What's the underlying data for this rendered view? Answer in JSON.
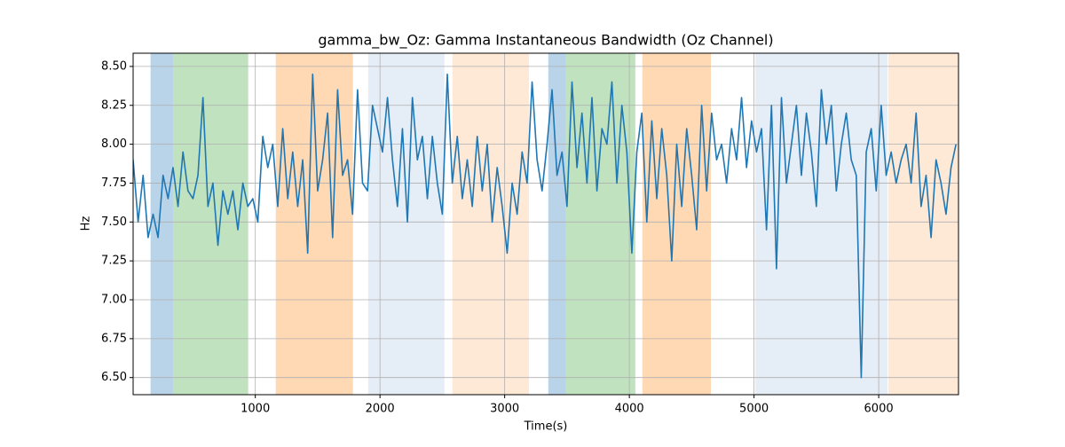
{
  "chart_data": {
    "type": "line",
    "title": "gamma_bw_Oz: Gamma Instantaneous Bandwidth (Oz Channel)",
    "xlabel": "Time(s)",
    "ylabel": "Hz",
    "xlim": [
      20,
      6640
    ],
    "ylim": [
      6.39,
      8.585
    ],
    "xticks": [
      1000,
      2000,
      3000,
      4000,
      5000,
      6000
    ],
    "yticks": [
      {
        "value": 6.5,
        "label": "6.50"
      },
      6.75,
      {
        "value": 7.0,
        "label": "7.00"
      },
      7.25,
      {
        "value": 7.5,
        "label": "7.50"
      },
      7.75,
      {
        "value": 8.0,
        "label": "8.00"
      },
      8.25,
      {
        "value": 8.5,
        "label": "8.50"
      }
    ],
    "grid": true,
    "spans": [
      {
        "start": 160,
        "end": 345,
        "color": "#b9d3e8"
      },
      {
        "start": 345,
        "end": 943,
        "color": "#c0e2bf"
      },
      {
        "start": 1164,
        "end": 1783,
        "color": "#ffd8b4"
      },
      {
        "start": 1905,
        "end": 2517,
        "color": "#e5edf6"
      },
      {
        "start": 2581,
        "end": 3194,
        "color": "#fee8d6"
      },
      {
        "start": 3350,
        "end": 3493,
        "color": "#b9d3e8"
      },
      {
        "start": 3493,
        "end": 4048,
        "color": "#c0e2bf"
      },
      {
        "start": 4105,
        "end": 4654,
        "color": "#ffd8b4"
      },
      {
        "start": 5010,
        "end": 6071,
        "color": "#e5edf6"
      },
      {
        "start": 6078,
        "end": 6640,
        "color": "#fee8d6"
      }
    ],
    "x": [
      20,
      60,
      100,
      140,
      180,
      220,
      260,
      300,
      340,
      380,
      420,
      460,
      500,
      540,
      580,
      620,
      660,
      700,
      740,
      780,
      820,
      860,
      900,
      940,
      980,
      1020,
      1060,
      1100,
      1140,
      1180,
      1220,
      1260,
      1300,
      1340,
      1380,
      1420,
      1460,
      1500,
      1540,
      1580,
      1620,
      1660,
      1700,
      1740,
      1780,
      1820,
      1860,
      1900,
      1940,
      1980,
      2020,
      2060,
      2100,
      2140,
      2180,
      2220,
      2260,
      2300,
      2340,
      2380,
      2420,
      2460,
      2500,
      2540,
      2580,
      2620,
      2660,
      2700,
      2740,
      2780,
      2820,
      2860,
      2900,
      2940,
      2980,
      3020,
      3060,
      3100,
      3140,
      3180,
      3220,
      3260,
      3300,
      3340,
      3380,
      3420,
      3460,
      3500,
      3540,
      3580,
      3620,
      3660,
      3700,
      3740,
      3780,
      3820,
      3860,
      3900,
      3940,
      3980,
      4020,
      4060,
      4100,
      4140,
      4180,
      4220,
      4260,
      4300,
      4340,
      4380,
      4420,
      4460,
      4500,
      4540,
      4580,
      4620,
      4660,
      4700,
      4740,
      4780,
      4820,
      4860,
      4900,
      4940,
      4980,
      5020,
      5060,
      5100,
      5140,
      5180,
      5220,
      5260,
      5300,
      5340,
      5380,
      5420,
      5460,
      5500,
      5540,
      5580,
      5620,
      5660,
      5700,
      5740,
      5780,
      5820,
      5860,
      5900,
      5940,
      5980,
      6020,
      6060,
      6100,
      6140,
      6180,
      6220,
      6260,
      6300,
      6340,
      6380,
      6420,
      6460,
      6500,
      6540,
      6580,
      6620
    ],
    "series": [
      {
        "color": "#1f77b4",
        "values": [
          7.9,
          7.5,
          7.8,
          7.4,
          7.55,
          7.4,
          7.8,
          7.65,
          7.85,
          7.6,
          7.95,
          7.7,
          7.65,
          7.8,
          8.3,
          7.6,
          7.75,
          7.35,
          7.7,
          7.55,
          7.7,
          7.45,
          7.75,
          7.6,
          7.65,
          7.5,
          8.05,
          7.85,
          8.0,
          7.6,
          8.1,
          7.65,
          7.95,
          7.6,
          7.9,
          7.3,
          8.45,
          7.7,
          7.9,
          8.2,
          7.4,
          8.35,
          7.8,
          7.9,
          7.55,
          8.35,
          7.75,
          7.7,
          8.25,
          8.1,
          7.95,
          8.3,
          7.9,
          7.6,
          8.1,
          7.5,
          8.3,
          7.9,
          8.05,
          7.65,
          8.05,
          7.75,
          7.55,
          8.45,
          7.75,
          8.05,
          7.65,
          7.9,
          7.6,
          8.05,
          7.7,
          8.0,
          7.5,
          7.85,
          7.6,
          7.3,
          7.75,
          7.55,
          7.95,
          7.75,
          8.4,
          7.9,
          7.7,
          8.0,
          8.35,
          7.8,
          7.95,
          7.6,
          8.4,
          7.85,
          8.2,
          7.75,
          8.3,
          7.7,
          8.1,
          8.0,
          8.4,
          7.75,
          8.25,
          7.95,
          7.3,
          7.95,
          8.2,
          7.5,
          8.15,
          7.65,
          8.1,
          7.8,
          7.25,
          8.0,
          7.6,
          8.1,
          7.8,
          7.45,
          8.25,
          7.7,
          8.2,
          7.9,
          8.0,
          7.75,
          8.1,
          7.9,
          8.3,
          7.85,
          8.15,
          7.95,
          8.1,
          7.45,
          8.25,
          7.2,
          8.3,
          7.75,
          8.0,
          8.25,
          7.8,
          8.2,
          7.95,
          7.6,
          8.35,
          8.0,
          8.25,
          7.7,
          8.0,
          8.2,
          7.9,
          7.8,
          6.5,
          7.95,
          8.1,
          7.7,
          8.25,
          7.8,
          7.95,
          7.75,
          7.9,
          8.0,
          7.75,
          8.2,
          7.6,
          7.8,
          7.4,
          7.9,
          7.75,
          7.55,
          7.85,
          8.0
        ]
      }
    ]
  }
}
